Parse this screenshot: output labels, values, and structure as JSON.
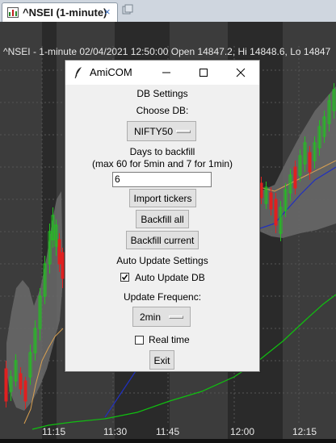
{
  "tab": {
    "title": "^NSEI (1-minute)",
    "close_glyph": "×",
    "icon": "chart-icon",
    "new_tab_icon": "new-tab-icon"
  },
  "chart": {
    "header": "^NSEI - 1-minute 02/04/2021 12:50:00 Open 14847.2, Hi 14848.6, Lo 14847",
    "time_labels": [
      "11:15",
      "11:30",
      "11:45",
      "12:00",
      "12:15"
    ],
    "colors": {
      "up": "#22c020",
      "down": "#e02020",
      "band": "#6a6a6a",
      "ma_orange": "#d9a050",
      "ma_blue": "#2030c0",
      "ma_green": "#10c010"
    }
  },
  "dialog": {
    "title": "AmiCOM",
    "db_settings": "DB Settings",
    "choose_db": "Choose DB:",
    "db_value": "NIFTY50",
    "days_to_backfill": "Days to backfill",
    "backfill_hint": "(max 60 for 5min and 7 for 1min)",
    "days_value": "6",
    "import_tickers": "Import tickers",
    "backfill_all": "Backfill all",
    "backfill_current": "Backfill current",
    "auto_update_settings": "Auto Update Settings",
    "auto_update_db": "Auto Update DB",
    "auto_update_checked": true,
    "update_frequency": "Update Frequenc:",
    "frequency_value": "2min",
    "real_time": "Real time",
    "real_time_checked": false,
    "exit": "Exit"
  }
}
